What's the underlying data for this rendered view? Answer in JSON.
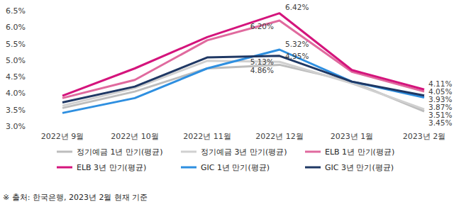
{
  "chart_data": {
    "type": "line",
    "categories": [
      "2022년 9월",
      "2022년 10월",
      "2022년 11월",
      "2022년 12월",
      "2023년 1월",
      "2023년 2월"
    ],
    "ylim": [
      3.0,
      6.5
    ],
    "yticks": [
      {
        "value": 3.0,
        "label": "3.0%"
      },
      {
        "value": 3.5,
        "label": "3.5%"
      },
      {
        "value": 4.0,
        "label": "4.0%"
      },
      {
        "value": 4.5,
        "label": "4.5%"
      },
      {
        "value": 5.0,
        "label": "5.0%"
      },
      {
        "value": 5.5,
        "label": "5.5%"
      },
      {
        "value": 6.0,
        "label": "6.0%"
      },
      {
        "value": 6.5,
        "label": "6.5%"
      }
    ],
    "grid": false,
    "legend": "bottom",
    "series": [
      {
        "name": "정기예금 1년 만기(평균)",
        "color": "#bdbdbd",
        "values": [
          3.55,
          4.05,
          4.75,
          4.86,
          4.35,
          3.45
        ],
        "value_labels": [
          null,
          null,
          null,
          "4.86%",
          null,
          "3.45%"
        ]
      },
      {
        "name": "정기예금 3년 만기(평균)",
        "color": "#d0d0d0",
        "values": [
          3.62,
          4.15,
          4.98,
          4.95,
          4.3,
          3.51
        ],
        "value_labels": [
          null,
          null,
          null,
          "4.95%",
          null,
          "3.51%"
        ]
      },
      {
        "name": "ELB 1년 만기(평균)",
        "color": "#e06a9e",
        "values": [
          3.85,
          4.4,
          5.6,
          6.2,
          4.65,
          4.05
        ],
        "value_labels": [
          null,
          null,
          null,
          "6.20%",
          null,
          "4.05%"
        ]
      },
      {
        "name": "ELB 3년 만기(평균)",
        "color": "#d4147c",
        "values": [
          3.92,
          4.75,
          5.7,
          6.42,
          4.7,
          4.11
        ],
        "value_labels": [
          null,
          null,
          null,
          "6.42%",
          null,
          "4.11%"
        ]
      },
      {
        "name": "GIC 1년 만기(평균)",
        "color": "#2e8fe0",
        "values": [
          3.4,
          3.85,
          4.75,
          5.32,
          4.35,
          3.87
        ],
        "value_labels": [
          null,
          null,
          null,
          "5.32%",
          null,
          "3.87%"
        ]
      },
      {
        "name": "GIC 3년 만기(평균)",
        "color": "#1f3864",
        "values": [
          3.72,
          4.2,
          5.08,
          5.13,
          4.35,
          3.93
        ],
        "value_labels": [
          null,
          null,
          null,
          "5.13%",
          null,
          "3.93%"
        ]
      }
    ],
    "footnote": "※ 출처: 한국은행, 2023년 2월 현재 기준"
  }
}
